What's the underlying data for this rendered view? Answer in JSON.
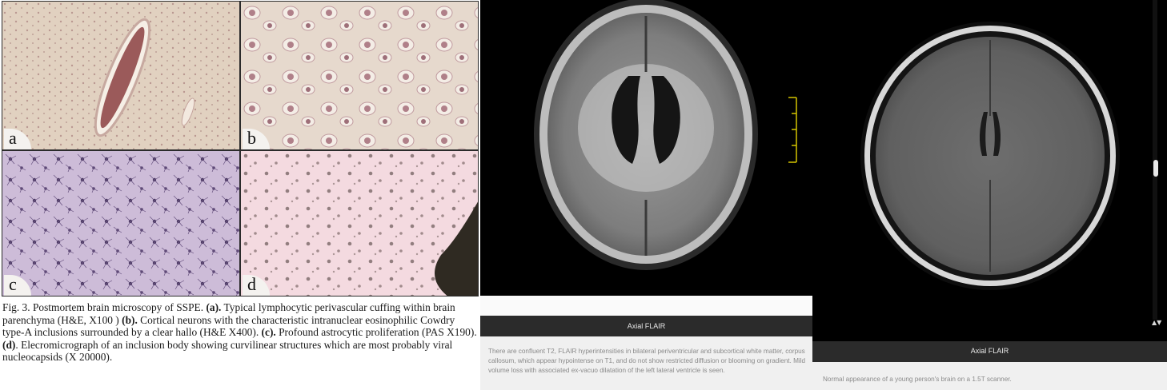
{
  "figure": {
    "panels": [
      {
        "label": "a"
      },
      {
        "label": "b"
      },
      {
        "label": "c"
      },
      {
        "label": "d"
      }
    ],
    "caption": {
      "intro": "Fig. 3. Postmortem brain microscopy of SSPE. ",
      "a_label": "(a).",
      "a_text": " Typical lymphocytic perivascular  cuffing within brain parenchyma (H&E, X100 ) ",
      "b_label": "(b).",
      "b_text": " Cortical neurons with the characteristic intranuclear eosinophilic Cowdry type-A inclusions surrounded by a clear hallo (H&E X400). ",
      "c_label": "(c).",
      "c_text": " Profound astrocytic proliferation (PAS X190). ",
      "d_label": "(d)",
      "d_text": ". Elecromicrograph of an inclusion body showing curvilinear structures which are most probably viral nucleocapsids (X 20000)."
    }
  },
  "mri_middle": {
    "title": "Axial FLAIR",
    "description": "There are confluent T2, FLAIR hyperintensities in bilateral periventricular and subcortical white matter, corpus callosum, which appear hypointense on T1, and do not show restricted diffusion or blooming on gradient. Mild volume loss with associated ex-vacuo dilatation of the left lateral ventricle is seen."
  },
  "mri_right": {
    "title": "Axial FLAIR",
    "description": "Normal appearance of a young person's brain on a 1.5T scanner."
  },
  "scrollbar": {
    "arrows": "▲▼"
  },
  "colors": {
    "he_stain_bg": "#dccab9",
    "pas_stain_bg": "#c9b8d4",
    "em_bg": "#f1d6dd",
    "caption_bar": "#2b2b2b",
    "desc_text": "#8a8a8a"
  }
}
